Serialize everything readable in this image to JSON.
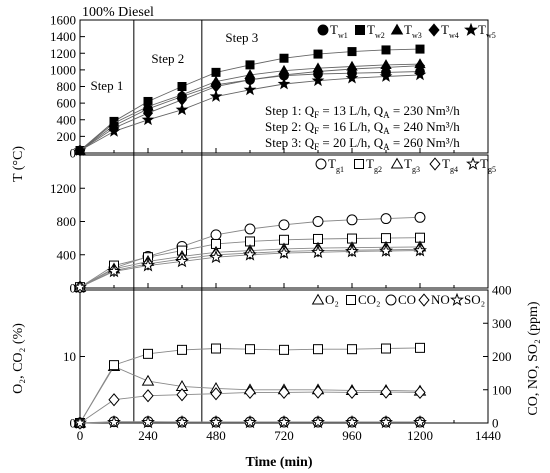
{
  "chart_data": [
    {
      "type": "line",
      "title": "100% Diesel",
      "xlabel": "Time (min)",
      "ylabel": "T (°C)",
      "xlim": [
        0,
        1440
      ],
      "ylim": [
        0,
        1600
      ],
      "x_ticks": [
        "0",
        "240",
        "480",
        "720",
        "960",
        "1200",
        "1440"
      ],
      "y_ticks": [
        "0",
        "200",
        "400",
        "600",
        "800",
        "1000",
        "1200",
        "1400",
        "1600"
      ],
      "x": [
        0,
        120,
        240,
        360,
        480,
        600,
        720,
        840,
        960,
        1080,
        1200
      ],
      "step_boundaries_min": [
        190,
        430
      ],
      "step_labels": [
        "Step 1",
        "Step 2",
        "Step 3"
      ],
      "conditions": [
        {
          "step": "Step 1:",
          "qf": "13 L/h,",
          "qa": "230 Nm³/h"
        },
        {
          "step": "Step 2:",
          "qf": "16 L/h,",
          "qa": "240 Nm³/h"
        },
        {
          "step": "Step 3:",
          "qf": "20 L/h,",
          "qa": "260 Nm³/h"
        }
      ],
      "legend_position": "top-right",
      "series": [
        {
          "name": "T",
          "sub": "w1",
          "marker": "circle-filled",
          "values": [
            30,
            330,
            530,
            680,
            820,
            880,
            930,
            950,
            960,
            970,
            980
          ]
        },
        {
          "name": "T",
          "sub": "w2",
          "marker": "square-filled",
          "values": [
            30,
            380,
            620,
            800,
            970,
            1060,
            1140,
            1190,
            1220,
            1240,
            1250
          ]
        },
        {
          "name": "T",
          "sub": "w3",
          "marker": "triangle-filled",
          "values": [
            30,
            360,
            560,
            700,
            860,
            940,
            990,
            1020,
            1040,
            1060,
            1070
          ]
        },
        {
          "name": "T",
          "sub": "w4",
          "marker": "diamond-filled",
          "values": [
            30,
            300,
            480,
            640,
            800,
            880,
            940,
            980,
            1010,
            1030,
            1050
          ]
        },
        {
          "name": "T",
          "sub": "w5",
          "marker": "star-filled",
          "values": [
            30,
            260,
            400,
            520,
            680,
            760,
            830,
            870,
            900,
            920,
            940
          ]
        }
      ]
    },
    {
      "type": "line",
      "ylabel": "",
      "xlim": [
        0,
        1440
      ],
      "ylim": [
        0,
        1600
      ],
      "y_ticks": [
        "0",
        "400",
        "800",
        "1200"
      ],
      "x": [
        0,
        120,
        240,
        360,
        480,
        600,
        720,
        840,
        960,
        1080,
        1200
      ],
      "legend_position": "top-right",
      "series": [
        {
          "name": "T",
          "sub": "g1",
          "marker": "circle-open",
          "values": [
            10,
            240,
            380,
            500,
            640,
            710,
            760,
            800,
            820,
            835,
            850
          ]
        },
        {
          "name": "T",
          "sub": "g2",
          "marker": "square-open",
          "values": [
            10,
            270,
            370,
            450,
            530,
            560,
            580,
            590,
            595,
            600,
            605
          ]
        },
        {
          "name": "T",
          "sub": "g3",
          "marker": "triangle-open",
          "values": [
            10,
            230,
            320,
            380,
            430,
            450,
            470,
            480,
            485,
            490,
            495
          ]
        },
        {
          "name": "T",
          "sub": "g4",
          "marker": "diamond-open",
          "values": [
            10,
            210,
            290,
            350,
            400,
            420,
            440,
            450,
            455,
            460,
            465
          ]
        },
        {
          "name": "T",
          "sub": "g5",
          "marker": "star-open",
          "values": [
            10,
            200,
            270,
            320,
            370,
            400,
            420,
            430,
            440,
            445,
            450
          ]
        }
      ]
    },
    {
      "type": "line",
      "ylabel": "O₂, CO₂ (%)",
      "ylabel_right": "CO, NO, SO₂ (ppm)",
      "xlim": [
        0,
        1440
      ],
      "ylim": [
        0,
        20
      ],
      "y_ticks": [
        "0",
        "10"
      ],
      "ylim_right": [
        0,
        400
      ],
      "y_ticks_right": [
        "0",
        "100",
        "200",
        "300",
        "400"
      ],
      "x": [
        0,
        120,
        240,
        360,
        480,
        600,
        720,
        840,
        960,
        1080,
        1200
      ],
      "legend_position": "top-right",
      "series": [
        {
          "name": "O₂",
          "marker": "triangle-open",
          "axis": "left",
          "values": [
            0,
            8.5,
            6.3,
            5.5,
            5.2,
            5.0,
            5.0,
            5.0,
            4.9,
            4.9,
            4.8
          ]
        },
        {
          "name": "CO₂",
          "marker": "square-open",
          "axis": "left",
          "values": [
            0,
            8.7,
            10.4,
            11.0,
            11.2,
            11.1,
            11.0,
            11.1,
            11.1,
            11.2,
            11.3
          ]
        },
        {
          "name": "CO",
          "marker": "circle-open",
          "axis": "right",
          "values": [
            0,
            4,
            4,
            3,
            3,
            3,
            3,
            3,
            3,
            3,
            3
          ]
        },
        {
          "name": "NO",
          "marker": "diamond-open",
          "axis": "right",
          "values": [
            0,
            70,
            82,
            85,
            88,
            92,
            92,
            93,
            92,
            93,
            92
          ]
        },
        {
          "name": "SO₂",
          "marker": "star-open",
          "axis": "right",
          "values": [
            0,
            2,
            2,
            2,
            2,
            2,
            2,
            2,
            2,
            2,
            2
          ]
        }
      ]
    }
  ]
}
